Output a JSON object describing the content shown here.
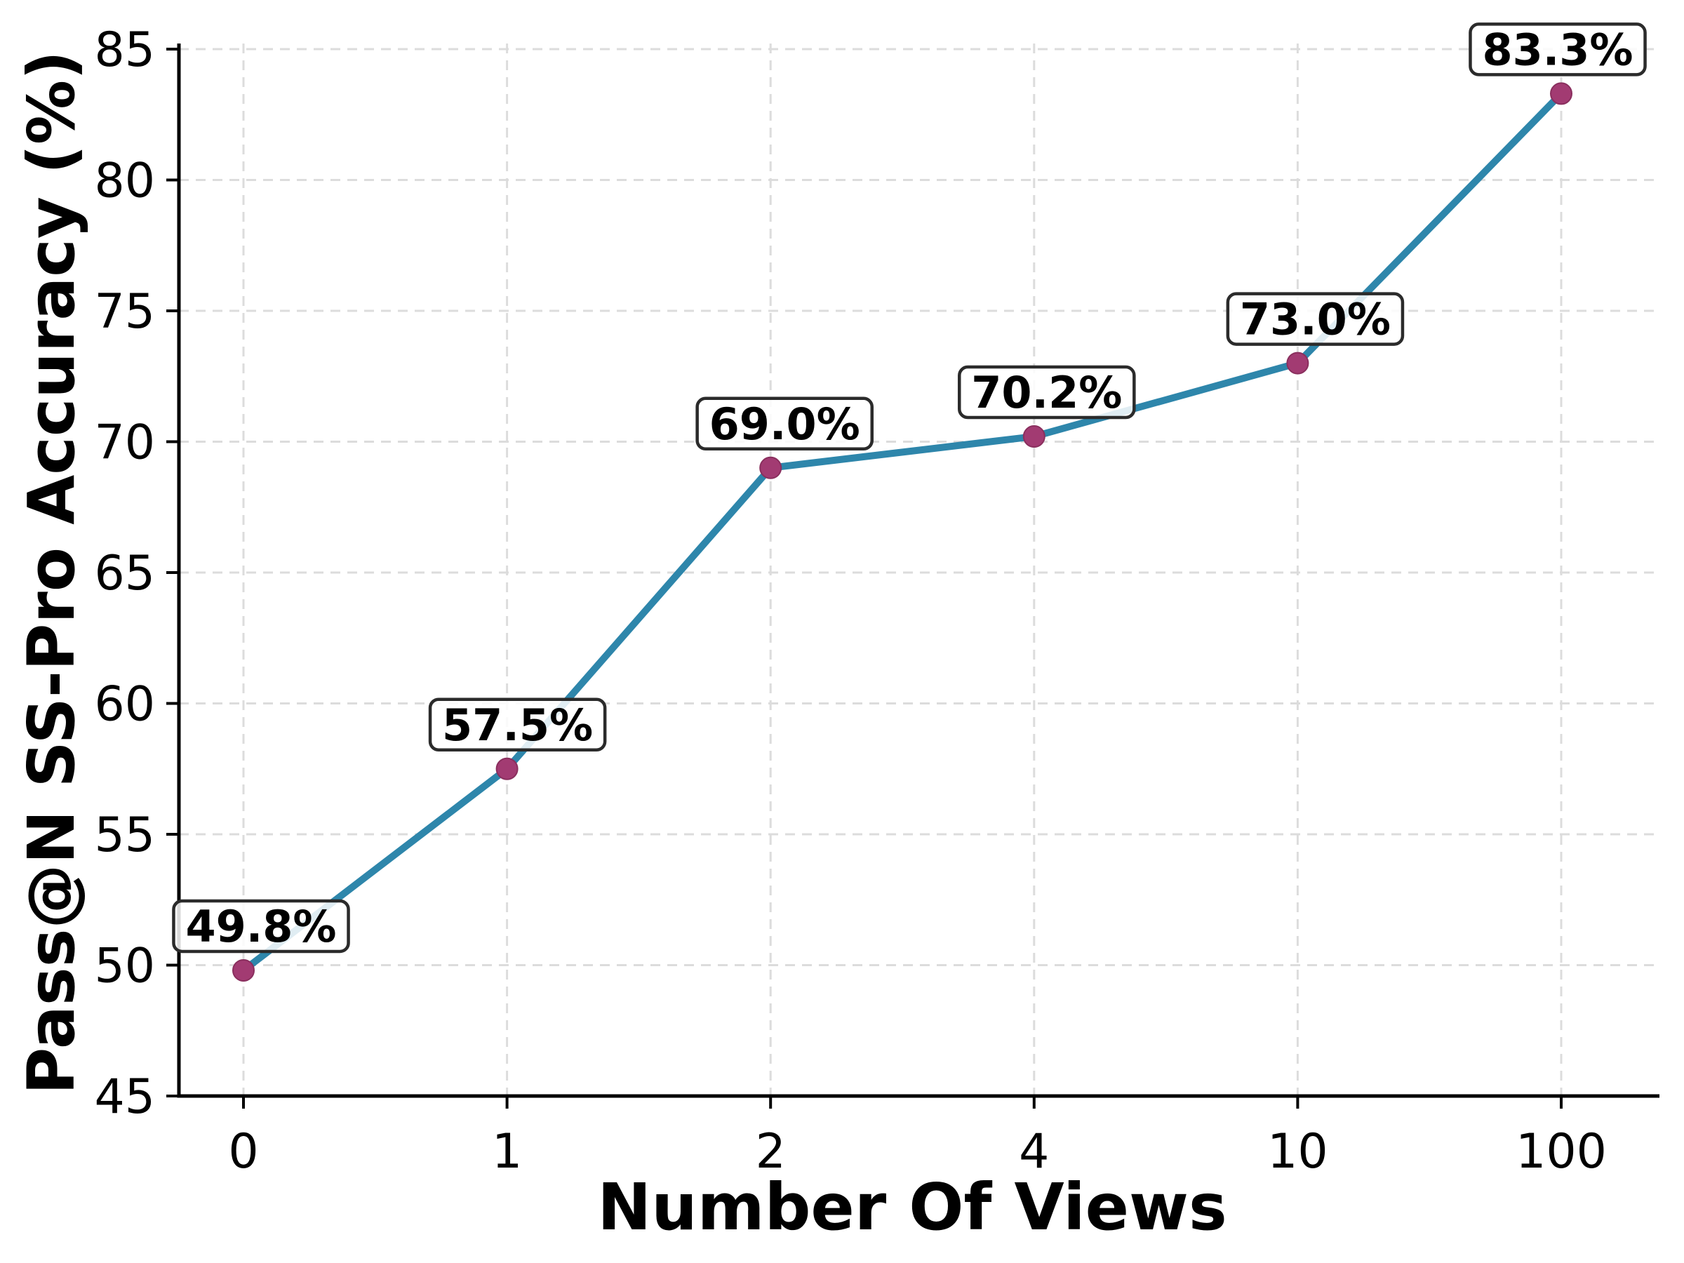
{
  "chart_data": {
    "type": "line",
    "title": "",
    "xlabel": "Number Of Views",
    "ylabel": "Pass@N SS-Pro Accuracy (%)",
    "categories": [
      "0",
      "1",
      "2",
      "4",
      "10",
      "100"
    ],
    "series": [
      {
        "name": "Pass@N SS-Pro Accuracy",
        "values": [
          49.8,
          57.5,
          69.0,
          70.2,
          73.0,
          83.3
        ]
      }
    ],
    "point_labels": [
      "49.8%",
      "57.5%",
      "69.0%",
      "70.2%",
      "73.0%",
      "83.3%"
    ],
    "ylim": [
      45,
      85
    ],
    "yticks": [
      45,
      50,
      55,
      60,
      65,
      70,
      75,
      80,
      85
    ],
    "grid": "dashed-both-axes",
    "legend": "none",
    "colors": {
      "line": "#2E86AB",
      "marker": "#A23B72",
      "marker_edge": "#8a2f5e",
      "grid": "#dcdcdc",
      "spine": "#000000",
      "tick": "#000000",
      "label_box_fill": "#ffffff",
      "label_box_border": "#2b2b2b",
      "background": "#ffffff"
    }
  }
}
